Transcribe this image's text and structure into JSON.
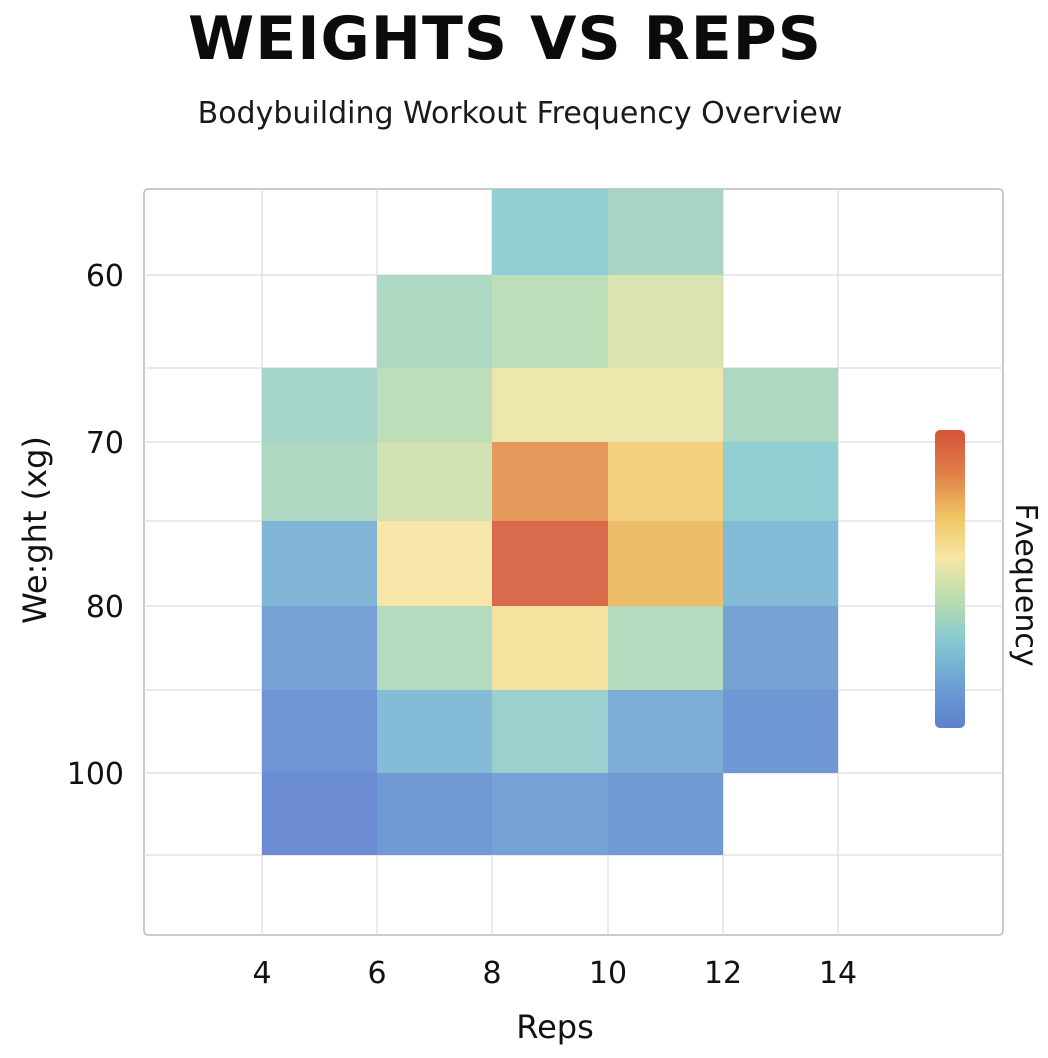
{
  "header": {
    "title": "WEIGHTS VS REPS",
    "subtitle": "Bodybuilding Workout Frequency Overview"
  },
  "chart_data": {
    "type": "heatmap",
    "title": "WEIGHTS VS REPS",
    "subtitle": "Bodybuilding Workout Frequency Overview",
    "xlabel": "Reps",
    "ylabel": "We:ght (xg)",
    "colorbar_label": "Fʌequency",
    "x_ticks": [
      "4",
      "6",
      "8",
      "10",
      "12",
      "14"
    ],
    "y_ticks": [
      "60",
      "70",
      "80",
      "100"
    ],
    "x_bins": [
      [
        4,
        6
      ],
      [
        6,
        8
      ],
      [
        8,
        10
      ],
      [
        10,
        12
      ],
      [
        12,
        14
      ]
    ],
    "y_bin_labels": [
      "55-60",
      "60-65",
      "65-70",
      "70-75",
      "75-80",
      "80-85",
      "85-90",
      "90-95"
    ],
    "values": [
      [
        null,
        null,
        0.3,
        0.36,
        null
      ],
      [
        null,
        0.38,
        0.42,
        0.5,
        null
      ],
      [
        0.35,
        0.42,
        0.55,
        0.55,
        0.38
      ],
      [
        0.38,
        0.48,
        0.82,
        0.68,
        0.3
      ],
      [
        0.2,
        0.58,
        0.97,
        0.74,
        0.22
      ],
      [
        0.12,
        0.4,
        0.6,
        0.4,
        0.12
      ],
      [
        0.06,
        0.22,
        0.32,
        0.17,
        0.07
      ],
      [
        0.02,
        0.08,
        0.12,
        0.08,
        null
      ]
    ],
    "value_range": [
      0,
      1
    ],
    "colorscale": [
      "#5d7fce",
      "#6c9fd2",
      "#84c8d2",
      "#b9dcb0",
      "#f6e6a4",
      "#f0c462",
      "#e07e48",
      "#d4543a"
    ],
    "grid": true,
    "legend_position": "right"
  }
}
